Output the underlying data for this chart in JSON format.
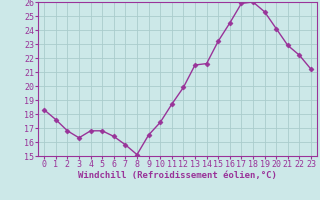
{
  "x": [
    0,
    1,
    2,
    3,
    4,
    5,
    6,
    7,
    8,
    9,
    10,
    11,
    12,
    13,
    14,
    15,
    16,
    17,
    18,
    19,
    20,
    21,
    22,
    23
  ],
  "y": [
    18.3,
    17.6,
    16.8,
    16.3,
    16.8,
    16.8,
    16.4,
    15.8,
    15.1,
    16.5,
    17.4,
    18.7,
    19.9,
    21.5,
    21.6,
    23.2,
    24.5,
    25.9,
    26.0,
    25.3,
    24.1,
    22.9,
    22.2,
    21.2
  ],
  "line_color": "#993399",
  "marker": "D",
  "marker_size": 2.5,
  "bg_color": "#cce8e8",
  "grid_color": "#aacccc",
  "xlabel": "Windchill (Refroidissement éolien,°C)",
  "xlabel_color": "#993399",
  "tick_color": "#993399",
  "label_color": "#993399",
  "ylim": [
    15,
    26
  ],
  "xlim_min": -0.5,
  "xlim_max": 23.5,
  "yticks": [
    15,
    16,
    17,
    18,
    19,
    20,
    21,
    22,
    23,
    24,
    25,
    26
  ],
  "xticks": [
    0,
    1,
    2,
    3,
    4,
    5,
    6,
    7,
    8,
    9,
    10,
    11,
    12,
    13,
    14,
    15,
    16,
    17,
    18,
    19,
    20,
    21,
    22,
    23
  ],
  "tick_fontsize": 6,
  "xlabel_fontsize": 6.5,
  "linewidth": 1.0
}
